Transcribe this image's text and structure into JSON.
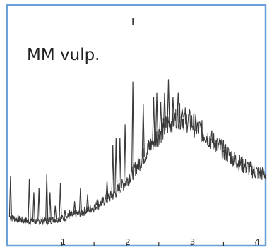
{
  "chart_data": {
    "type": "line",
    "title": "",
    "annotation": "MM vulp.",
    "xlabel": "",
    "ylabel": "",
    "xlim": [
      0.2,
      4.15
    ],
    "ylim": [
      0,
      1.0
    ],
    "x_ticks": [
      1,
      1.5,
      2,
      2.5,
      3,
      3.5,
      4
    ],
    "x_tick_labels": [
      "1",
      "",
      "2",
      "",
      "3",
      "",
      "4"
    ],
    "top_marker_x": 2.1,
    "grid": false,
    "legend": "none",
    "line_color": "#3a3a3a",
    "frame_color": "#6aa0d8",
    "series": [
      {
        "envelope": {
          "x": [
            0.2,
            0.4,
            0.6,
            0.8,
            1.0,
            1.2,
            1.4,
            1.6,
            1.8,
            2.0,
            2.2,
            2.4,
            2.6,
            2.8,
            3.0,
            3.2,
            3.4,
            3.6,
            3.8,
            4.0,
            4.15
          ],
          "y": [
            0.07,
            0.055,
            0.05,
            0.055,
            0.065,
            0.08,
            0.1,
            0.13,
            0.17,
            0.23,
            0.31,
            0.4,
            0.47,
            0.52,
            0.49,
            0.44,
            0.39,
            0.34,
            0.3,
            0.27,
            0.26
          ]
        },
        "peaks": {
          "x": [
            0.21,
            0.5,
            0.57,
            0.65,
            0.77,
            0.82,
            0.9,
            0.98,
            1.05,
            1.12,
            1.2,
            1.29,
            1.4,
            1.55,
            1.7,
            1.79,
            1.84,
            1.9,
            1.98,
            2.1,
            2.26,
            2.42,
            2.47,
            2.53,
            2.59,
            2.65,
            2.72,
            2.8,
            2.86,
            3.1,
            3.3,
            3.5
          ],
          "y": [
            0.25,
            0.24,
            0.18,
            0.2,
            0.26,
            0.18,
            0.12,
            0.22,
            0.1,
            0.1,
            0.14,
            0.2,
            0.17,
            0.15,
            0.23,
            0.39,
            0.42,
            0.42,
            0.48,
            0.67,
            0.57,
            0.6,
            0.62,
            0.58,
            0.62,
            0.68,
            0.6,
            0.62,
            0.55,
            0.48,
            0.41,
            0.36
          ]
        }
      }
    ]
  }
}
